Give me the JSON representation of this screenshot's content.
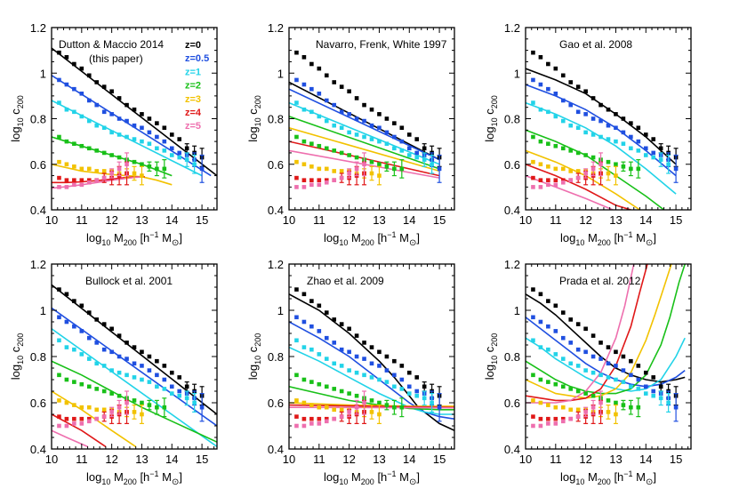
{
  "axis_text": {
    "x_log": "log",
    "x_sub": "10",
    "x_M": " M",
    "x_200": "200",
    "x_units_open": " [h",
    "x_minus1": "−1",
    "x_M2": " M",
    "x_sun": "⊙",
    "x_close": "]",
    "y_log": "log",
    "y_sub": "10",
    "y_c": " c",
    "y_200": "200"
  },
  "chart_data": [
    {
      "type": "scatter",
      "title": "Dutton & Maccio 2014",
      "subtitle": "(this paper)",
      "xlim": [
        10,
        15.5
      ],
      "ylim": [
        0.4,
        1.2
      ],
      "xticks": [
        "10",
        "11",
        "12",
        "13",
        "14",
        "15"
      ],
      "yticks": [
        "0.4",
        "0.6",
        "0.8",
        "1",
        "1.2"
      ],
      "legend": [
        "z=0",
        "z=0.5",
        "z=1",
        "z=2",
        "z=3",
        "z=4",
        "z=5"
      ],
      "legend_position": "top-right",
      "colors": [
        "#000000",
        "#1f4fe0",
        "#22d3e8",
        "#18c018",
        "#f2c200",
        "#e01818",
        "#ee6fae"
      ]
    },
    {
      "type": "scatter",
      "title": "Navarro, Frenk, White 1997",
      "xlim": [
        10,
        15.5
      ],
      "ylim": [
        0.4,
        1.2
      ],
      "xticks": [
        "10",
        "11",
        "12",
        "13",
        "14",
        "15"
      ],
      "yticks": [
        "0.4",
        "0.6",
        "0.8",
        "1",
        "1.2"
      ]
    },
    {
      "type": "scatter",
      "title": "Gao et al. 2008",
      "xlim": [
        10,
        15.5
      ],
      "ylim": [
        0.4,
        1.2
      ],
      "xticks": [
        "10",
        "11",
        "12",
        "13",
        "14",
        "15"
      ],
      "yticks": [
        "0.4",
        "0.6",
        "0.8",
        "1",
        "1.2"
      ]
    },
    {
      "type": "scatter",
      "title": "Bullock et al. 2001",
      "xlim": [
        10,
        15.5
      ],
      "ylim": [
        0.4,
        1.2
      ],
      "xticks": [
        "10",
        "11",
        "12",
        "13",
        "14",
        "15"
      ],
      "yticks": [
        "0.4",
        "0.6",
        "0.8",
        "1",
        "1.2"
      ]
    },
    {
      "type": "scatter",
      "title": "Zhao et al. 2009",
      "xlim": [
        10,
        15.5
      ],
      "ylim": [
        0.4,
        1.2
      ],
      "xticks": [
        "10",
        "11",
        "12",
        "13",
        "14",
        "15"
      ],
      "yticks": [
        "0.4",
        "0.6",
        "0.8",
        "1",
        "1.2"
      ]
    },
    {
      "type": "scatter",
      "title": "Prada et al. 2012",
      "xlim": [
        10,
        15.5
      ],
      "ylim": [
        0.4,
        1.2
      ],
      "xticks": [
        "10",
        "11",
        "12",
        "13",
        "14",
        "15"
      ],
      "yticks": [
        "0.4",
        "0.6",
        "0.8",
        "1",
        "1.2"
      ]
    }
  ],
  "points": [
    {
      "color": "#000000",
      "x": [
        10.25,
        10.5,
        10.75,
        11.0,
        11.25,
        11.5,
        11.75,
        12.0,
        12.25,
        12.5,
        12.75,
        13.0,
        13.25,
        13.5,
        13.75,
        14.0,
        14.25,
        14.5,
        14.75,
        15.0
      ],
      "y": [
        1.09,
        1.07,
        1.04,
        1.02,
        0.99,
        0.96,
        0.94,
        0.92,
        0.89,
        0.86,
        0.84,
        0.82,
        0.8,
        0.78,
        0.76,
        0.73,
        0.71,
        0.67,
        0.65,
        0.63
      ],
      "err": [
        0,
        0,
        0,
        0,
        0,
        0,
        0,
        0,
        0,
        0,
        0,
        0,
        0,
        0,
        0,
        0,
        0,
        0.02,
        0.03,
        0.04
      ]
    },
    {
      "color": "#1f4fe0",
      "x": [
        10.25,
        10.5,
        10.75,
        11.0,
        11.25,
        11.5,
        11.75,
        12.0,
        12.25,
        12.5,
        12.75,
        13.0,
        13.25,
        13.5,
        13.75,
        14.0,
        14.25,
        14.5,
        14.75,
        15.0
      ],
      "y": [
        0.97,
        0.95,
        0.93,
        0.91,
        0.88,
        0.86,
        0.83,
        0.82,
        0.8,
        0.79,
        0.77,
        0.76,
        0.74,
        0.72,
        0.7,
        0.67,
        0.65,
        0.64,
        0.62,
        0.58
      ],
      "err": [
        0,
        0,
        0,
        0,
        0,
        0,
        0,
        0,
        0,
        0,
        0,
        0,
        0,
        0,
        0,
        0,
        0,
        0,
        0.03,
        0.06
      ]
    },
    {
      "color": "#22d3e8",
      "x": [
        10.25,
        10.5,
        10.75,
        11.0,
        11.25,
        11.5,
        11.75,
        12.0,
        12.25,
        12.5,
        12.75,
        13.0,
        13.25,
        13.5,
        13.75,
        14.0,
        14.25,
        14.5,
        14.75
      ],
      "y": [
        0.87,
        0.84,
        0.83,
        0.81,
        0.79,
        0.77,
        0.76,
        0.74,
        0.73,
        0.72,
        0.71,
        0.7,
        0.69,
        0.67,
        0.66,
        0.64,
        0.63,
        0.62,
        0.6
      ],
      "err": [
        0,
        0,
        0,
        0,
        0,
        0,
        0,
        0,
        0,
        0,
        0,
        0,
        0,
        0,
        0,
        0,
        0,
        0.03,
        0.04
      ]
    },
    {
      "color": "#18c018",
      "x": [
        10.25,
        10.5,
        10.75,
        11.0,
        11.25,
        11.5,
        11.75,
        12.0,
        12.25,
        12.5,
        12.75,
        13.0,
        13.25,
        13.5,
        13.75
      ],
      "y": [
        0.72,
        0.7,
        0.69,
        0.68,
        0.67,
        0.66,
        0.65,
        0.64,
        0.63,
        0.62,
        0.61,
        0.6,
        0.59,
        0.58,
        0.58
      ],
      "err": [
        0,
        0,
        0,
        0,
        0,
        0,
        0,
        0,
        0,
        0,
        0,
        0,
        0.02,
        0.03,
        0.04
      ]
    },
    {
      "color": "#f2c200",
      "x": [
        10.25,
        10.5,
        10.75,
        11.0,
        11.25,
        11.5,
        11.75,
        12.0,
        12.25,
        12.5,
        12.75,
        13.0
      ],
      "y": [
        0.61,
        0.6,
        0.59,
        0.58,
        0.58,
        0.57,
        0.57,
        0.57,
        0.56,
        0.56,
        0.56,
        0.55
      ],
      "err": [
        0,
        0,
        0,
        0,
        0,
        0,
        0,
        0,
        0,
        0.02,
        0.03,
        0.04
      ]
    },
    {
      "color": "#e01818",
      "x": [
        10.25,
        10.5,
        10.75,
        11.0,
        11.25,
        11.5,
        11.75,
        12.0,
        12.25,
        12.5
      ],
      "y": [
        0.54,
        0.53,
        0.53,
        0.53,
        0.53,
        0.53,
        0.54,
        0.54,
        0.55,
        0.56
      ],
      "err": [
        0,
        0,
        0,
        0,
        0,
        0,
        0.02,
        0.03,
        0.04,
        0.05
      ]
    },
    {
      "color": "#ee6fae",
      "x": [
        10.25,
        10.5,
        10.75,
        11.0,
        11.25,
        11.5,
        11.75,
        12.0,
        12.25,
        12.5
      ],
      "y": [
        0.5,
        0.5,
        0.51,
        0.51,
        0.52,
        0.53,
        0.54,
        0.56,
        0.58,
        0.6
      ],
      "err": [
        0,
        0,
        0,
        0,
        0,
        0,
        0,
        0.02,
        0.03,
        0.05
      ]
    }
  ],
  "curves": [
    [
      {
        "color": "#000000",
        "x": [
          10,
          15.5
        ],
        "y": [
          1.11,
          0.55
        ]
      },
      {
        "color": "#1f4fe0",
        "x": [
          10,
          15.3
        ],
        "y": [
          0.99,
          0.55
        ]
      },
      {
        "color": "#22d3e8",
        "x": [
          10,
          15.0
        ],
        "y": [
          0.88,
          0.55
        ]
      },
      {
        "color": "#18c018",
        "x": [
          10,
          11,
          12,
          13,
          14
        ],
        "y": [
          0.72,
          0.68,
          0.64,
          0.6,
          0.55
        ]
      },
      {
        "color": "#f2c200",
        "x": [
          10,
          11,
          12,
          12.5,
          13,
          13.5,
          14
        ],
        "y": [
          0.6,
          0.57,
          0.555,
          0.55,
          0.545,
          0.53,
          0.51
        ]
      },
      {
        "color": "#e01818",
        "x": [
          10,
          10.5,
          11,
          11.5,
          12,
          12.5,
          13,
          13.1
        ],
        "y": [
          0.52,
          0.52,
          0.523,
          0.528,
          0.535,
          0.542,
          0.545,
          0.545
        ]
      },
      {
        "color": "#ee6fae",
        "x": [
          10,
          10.5,
          11,
          11.5,
          12,
          12.5,
          13
        ],
        "y": [
          0.495,
          0.502,
          0.51,
          0.52,
          0.53,
          0.538,
          0.545
        ]
      }
    ],
    [
      {
        "color": "#000000",
        "x": [
          10,
          15
        ],
        "y": [
          0.96,
          0.62
        ]
      },
      {
        "color": "#1f4fe0",
        "x": [
          10,
          15
        ],
        "y": [
          0.93,
          0.62
        ]
      },
      {
        "color": "#22d3e8",
        "x": [
          10,
          15
        ],
        "y": [
          0.87,
          0.6
        ]
      },
      {
        "color": "#18c018",
        "x": [
          10,
          15
        ],
        "y": [
          0.81,
          0.58
        ]
      },
      {
        "color": "#f2c200",
        "x": [
          10,
          15
        ],
        "y": [
          0.76,
          0.57
        ]
      },
      {
        "color": "#e01818",
        "x": [
          10,
          15
        ],
        "y": [
          0.7,
          0.55
        ]
      },
      {
        "color": "#ee6fae",
        "x": [
          10,
          15
        ],
        "y": [
          0.66,
          0.54
        ]
      }
    ],
    [
      {
        "color": "#000000",
        "x": [
          10,
          11,
          12,
          13,
          14,
          15
        ],
        "y": [
          1.02,
          0.97,
          0.91,
          0.82,
          0.72,
          0.6
        ]
      },
      {
        "color": "#1f4fe0",
        "x": [
          10,
          11,
          12,
          13,
          14,
          15
        ],
        "y": [
          0.95,
          0.9,
          0.84,
          0.76,
          0.66,
          0.55
        ]
      },
      {
        "color": "#22d3e8",
        "x": [
          10,
          11,
          12,
          13,
          14,
          15
        ],
        "y": [
          0.87,
          0.82,
          0.76,
          0.68,
          0.58,
          0.47
        ]
      },
      {
        "color": "#18c018",
        "x": [
          10,
          11,
          12,
          13,
          14,
          14.6
        ],
        "y": [
          0.75,
          0.7,
          0.64,
          0.55,
          0.46,
          0.4
        ]
      },
      {
        "color": "#f2c200",
        "x": [
          10,
          11,
          12,
          13,
          13.8
        ],
        "y": [
          0.66,
          0.61,
          0.55,
          0.47,
          0.4
        ]
      },
      {
        "color": "#e01818",
        "x": [
          10,
          11,
          12,
          13,
          13.5
        ],
        "y": [
          0.6,
          0.55,
          0.49,
          0.42,
          0.4
        ]
      },
      {
        "color": "#ee6fae",
        "x": [
          10,
          11,
          12,
          12.9
        ],
        "y": [
          0.55,
          0.5,
          0.45,
          0.4
        ]
      }
    ],
    [
      {
        "color": "#000000",
        "x": [
          10,
          15.5
        ],
        "y": [
          1.11,
          0.55
        ]
      },
      {
        "color": "#1f4fe0",
        "x": [
          10,
          15.5
        ],
        "y": [
          1.01,
          0.5
        ]
      },
      {
        "color": "#22d3e8",
        "x": [
          10,
          15.5
        ],
        "y": [
          0.92,
          0.41
        ]
      },
      {
        "color": "#18c018",
        "x": [
          10,
          11,
          12,
          13,
          14,
          15,
          15.5
        ],
        "y": [
          0.78,
          0.72,
          0.65,
          0.58,
          0.52,
          0.46,
          0.43
        ]
      },
      {
        "color": "#f2c200",
        "x": [
          10,
          11,
          12,
          12.8
        ],
        "y": [
          0.65,
          0.57,
          0.48,
          0.41
        ]
      },
      {
        "color": "#e01818",
        "x": [
          10,
          11,
          11.8
        ],
        "y": [
          0.55,
          0.48,
          0.41
        ]
      },
      {
        "color": "#ee6fae",
        "x": [
          10,
          10.5,
          11.2
        ],
        "y": [
          0.48,
          0.45,
          0.41
        ]
      }
    ],
    [
      {
        "color": "#000000",
        "x": [
          10,
          11,
          12,
          13,
          13.5,
          14,
          14.3,
          14.6,
          15,
          15.5
        ],
        "y": [
          1.07,
          1.0,
          0.9,
          0.78,
          0.71,
          0.63,
          0.58,
          0.55,
          0.51,
          0.48
        ]
      },
      {
        "color": "#1f4fe0",
        "x": [
          10,
          11,
          12,
          13,
          13.5,
          14,
          14.5,
          15,
          15.5
        ],
        "y": [
          0.95,
          0.88,
          0.8,
          0.7,
          0.65,
          0.6,
          0.56,
          0.54,
          0.53
        ]
      },
      {
        "color": "#22d3e8",
        "x": [
          10,
          11,
          12,
          13,
          13.5,
          14,
          14.5,
          15,
          15.5
        ],
        "y": [
          0.84,
          0.78,
          0.71,
          0.64,
          0.61,
          0.58,
          0.56,
          0.55,
          0.55
        ]
      },
      {
        "color": "#18c018",
        "x": [
          10,
          11,
          12,
          13,
          14,
          15,
          15.5
        ],
        "y": [
          0.67,
          0.64,
          0.61,
          0.59,
          0.575,
          0.57,
          0.57
        ]
      },
      {
        "color": "#f2c200",
        "x": [
          10,
          12,
          14,
          15.5
        ],
        "y": [
          0.6,
          0.59,
          0.585,
          0.585
        ]
      },
      {
        "color": "#e01818",
        "x": [
          10,
          15.5
        ],
        "y": [
          0.59,
          0.58
        ]
      },
      {
        "color": "#ee6fae",
        "x": [
          10,
          15.5
        ],
        "y": [
          0.58,
          0.578
        ]
      }
    ],
    [
      {
        "color": "#000000",
        "x": [
          10,
          10.5,
          11,
          11.5,
          12,
          12.5,
          13,
          13.5,
          14,
          14.5,
          15,
          15.3
        ],
        "y": [
          1.07,
          1.03,
          0.98,
          0.92,
          0.86,
          0.8,
          0.75,
          0.72,
          0.7,
          0.69,
          0.7,
          0.71
        ]
      },
      {
        "color": "#1f4fe0",
        "x": [
          10,
          10.5,
          11,
          11.5,
          12,
          12.5,
          13,
          13.5,
          14,
          14.5,
          15,
          15.3
        ],
        "y": [
          0.97,
          0.92,
          0.87,
          0.82,
          0.77,
          0.73,
          0.7,
          0.68,
          0.67,
          0.68,
          0.71,
          0.74
        ]
      },
      {
        "color": "#22d3e8",
        "x": [
          10,
          10.5,
          11,
          11.5,
          12,
          12.5,
          13,
          13.5,
          14,
          14.5,
          15,
          15.3
        ],
        "y": [
          0.88,
          0.84,
          0.79,
          0.75,
          0.71,
          0.68,
          0.66,
          0.65,
          0.66,
          0.7,
          0.8,
          0.88
        ]
      },
      {
        "color": "#18c018",
        "x": [
          10,
          10.5,
          11,
          11.5,
          12,
          12.5,
          13,
          13.5,
          14,
          14.5,
          14.8,
          15.1,
          15.3
        ],
        "y": [
          0.78,
          0.74,
          0.7,
          0.67,
          0.65,
          0.64,
          0.64,
          0.66,
          0.72,
          0.85,
          0.97,
          1.12,
          1.2
        ]
      },
      {
        "color": "#f2c200",
        "x": [
          10,
          10.5,
          11,
          11.5,
          12,
          12.5,
          13,
          13.5,
          14,
          14.3,
          14.6,
          14.85
        ],
        "y": [
          0.7,
          0.67,
          0.64,
          0.63,
          0.62,
          0.63,
          0.66,
          0.73,
          0.87,
          0.98,
          1.1,
          1.2
        ]
      },
      {
        "color": "#e01818",
        "x": [
          10,
          10.5,
          11,
          11.5,
          12,
          12.5,
          13,
          13.5,
          13.8,
          14.05
        ],
        "y": [
          0.63,
          0.62,
          0.61,
          0.61,
          0.62,
          0.66,
          0.76,
          0.93,
          1.08,
          1.2
        ]
      },
      {
        "color": "#ee6fae",
        "x": [
          10,
          10.5,
          11,
          11.5,
          12,
          12.5,
          13,
          13.3,
          13.6
        ],
        "y": [
          0.6,
          0.6,
          0.6,
          0.61,
          0.65,
          0.73,
          0.88,
          1.02,
          1.2
        ]
      }
    ]
  ]
}
